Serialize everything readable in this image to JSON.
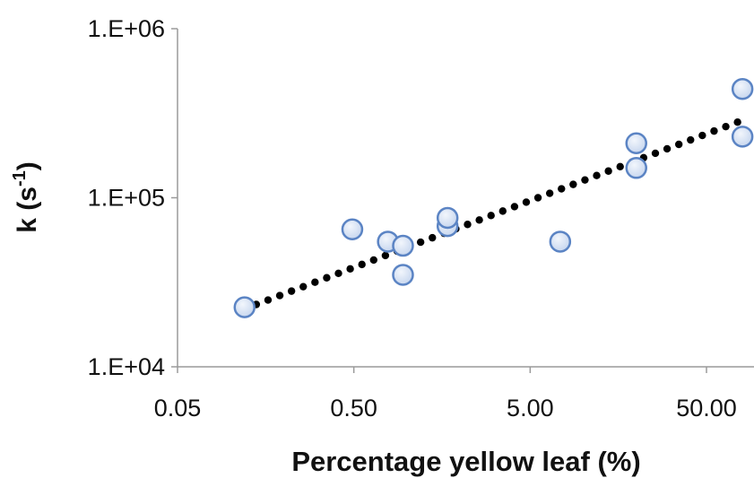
{
  "chart_data": {
    "type": "scatter",
    "title": "",
    "xlabel": "Percentage yellow leaf (%)",
    "ylabel": "k (s-1)",
    "ylabel_main": "k (s",
    "ylabel_sup": "-1",
    "ylabel_close": ")",
    "x_scale": "log",
    "y_scale": "log",
    "xlim": [
      0.05,
      80
    ],
    "ylim": [
      10000,
      1000000
    ],
    "x_ticks": [
      0.05,
      0.5,
      5,
      50
    ],
    "x_tick_labels": [
      "0.05",
      "0.50",
      "5.00",
      "50.00"
    ],
    "y_ticks": [
      10000,
      100000,
      1000000
    ],
    "y_tick_labels": [
      "1.E+04",
      "1.E+05",
      "1.E+06"
    ],
    "grid": false,
    "legend": "none",
    "colors": {
      "marker_fill": "#c8d7ef",
      "marker_stroke": "#5b84c4",
      "trendline": "#000000",
      "axis": "#9a9a9a"
    },
    "series": [
      {
        "points": [
          {
            "x": 0.12,
            "y": 22500
          },
          {
            "x": 0.49,
            "y": 65000
          },
          {
            "x": 0.78,
            "y": 55000
          },
          {
            "x": 0.95,
            "y": 52000
          },
          {
            "x": 0.95,
            "y": 35000
          },
          {
            "x": 1.7,
            "y": 68000
          },
          {
            "x": 1.7,
            "y": 76000
          },
          {
            "x": 7.4,
            "y": 55000
          },
          {
            "x": 20,
            "y": 150000
          },
          {
            "x": 20,
            "y": 210000
          },
          {
            "x": 80,
            "y": 440000
          },
          {
            "x": 80,
            "y": 230000
          }
        ]
      }
    ],
    "trendline": {
      "type": "power",
      "style": "dotted",
      "x_start": 0.12,
      "y_start": 22000,
      "x_end": 75,
      "y_end": 280000
    }
  }
}
